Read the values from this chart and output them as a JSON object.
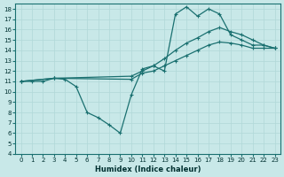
{
  "xlabel": "Humidex (Indice chaleur)",
  "background_color": "#c8e8e8",
  "grid_color": "#b0d8d8",
  "line_color": "#1a7070",
  "xlim": [
    -0.5,
    23.5
  ],
  "ylim": [
    4,
    18.5
  ],
  "yticks": [
    4,
    5,
    6,
    7,
    8,
    9,
    10,
    11,
    12,
    13,
    14,
    15,
    16,
    17,
    18
  ],
  "xticks": [
    0,
    1,
    2,
    3,
    4,
    5,
    6,
    7,
    8,
    9,
    10,
    11,
    12,
    13,
    14,
    15,
    16,
    17,
    18,
    19,
    20,
    21,
    22,
    23
  ],
  "line1_x": [
    0,
    1,
    2,
    3,
    4,
    5,
    6,
    7,
    8,
    9,
    10,
    11,
    12,
    13,
    14,
    15,
    16,
    17,
    18,
    19,
    20,
    21,
    22,
    23
  ],
  "line1_y": [
    11,
    11,
    11,
    11.3,
    11.2,
    10.5,
    8.0,
    7.5,
    6.8,
    6.0,
    9.7,
    12.2,
    12.5,
    12.0,
    17.5,
    18.2,
    17.3,
    18.0,
    17.5,
    15.5,
    15.0,
    14.5,
    14.5,
    14.2
  ],
  "line2_x": [
    0,
    3,
    10,
    11,
    12,
    13,
    14,
    15,
    16,
    17,
    18,
    19,
    20,
    21,
    22,
    23
  ],
  "line2_y": [
    11,
    11.3,
    11.5,
    12.0,
    12.5,
    13.2,
    14.0,
    14.7,
    15.2,
    15.8,
    16.2,
    15.8,
    15.5,
    15.0,
    14.5,
    14.2
  ],
  "line3_x": [
    0,
    3,
    10,
    11,
    12,
    13,
    14,
    15,
    16,
    17,
    18,
    19,
    20,
    21,
    22,
    23
  ],
  "line3_y": [
    11,
    11.3,
    11.2,
    11.8,
    12.0,
    12.5,
    13.0,
    13.5,
    14.0,
    14.5,
    14.8,
    14.7,
    14.5,
    14.2,
    14.2,
    14.2
  ]
}
